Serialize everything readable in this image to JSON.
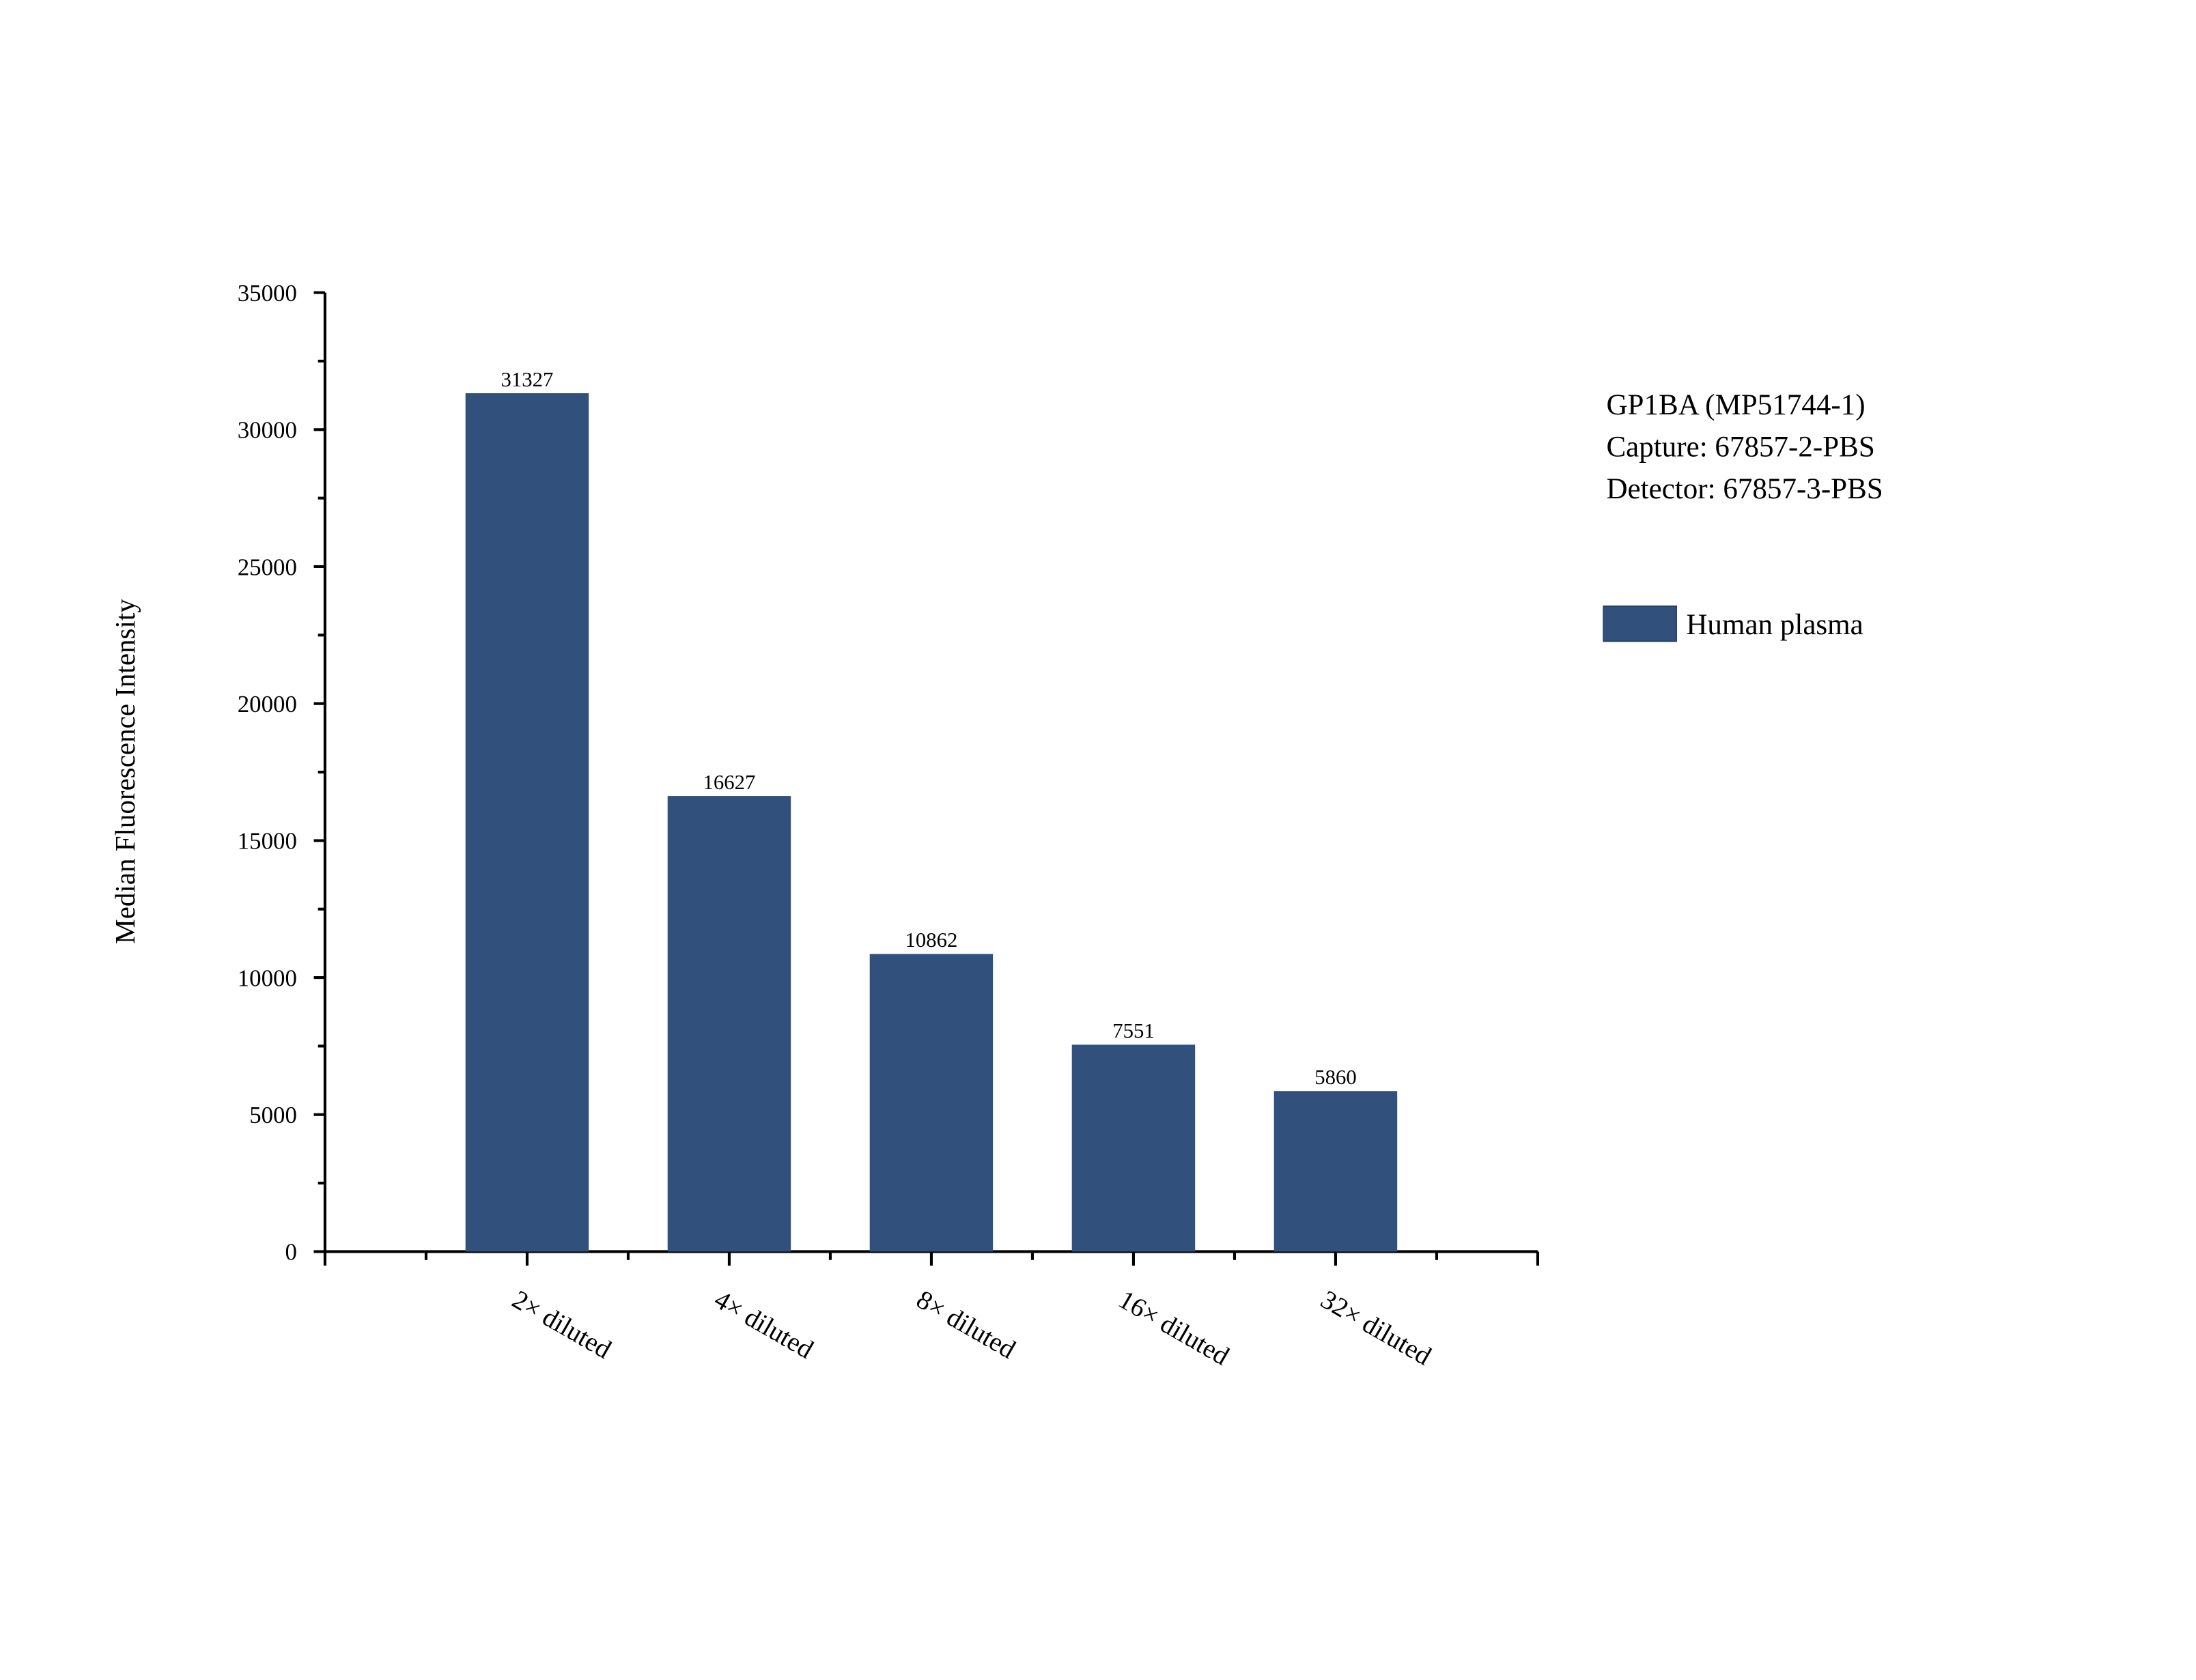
{
  "chart_data": {
    "type": "bar",
    "y_label": "Median Fluorescence Intensity",
    "annotations": [
      "GP1BA (MP51744-1)",
      "Capture: 67857-2-PBS",
      "Detector: 67857-3-PBS"
    ],
    "categories": [
      "2× diluted",
      "4× diluted",
      "8× diluted",
      "16× diluted",
      "32× diluted"
    ],
    "series": [
      {
        "name": "Human plasma",
        "color": "#31507b",
        "values": [
          31327,
          16627,
          10862,
          7551,
          5860
        ]
      }
    ],
    "ylim": [
      0,
      35000
    ],
    "yticks": [
      0,
      5000,
      10000,
      15000,
      20000,
      25000,
      30000,
      35000
    ],
    "grid": false
  }
}
